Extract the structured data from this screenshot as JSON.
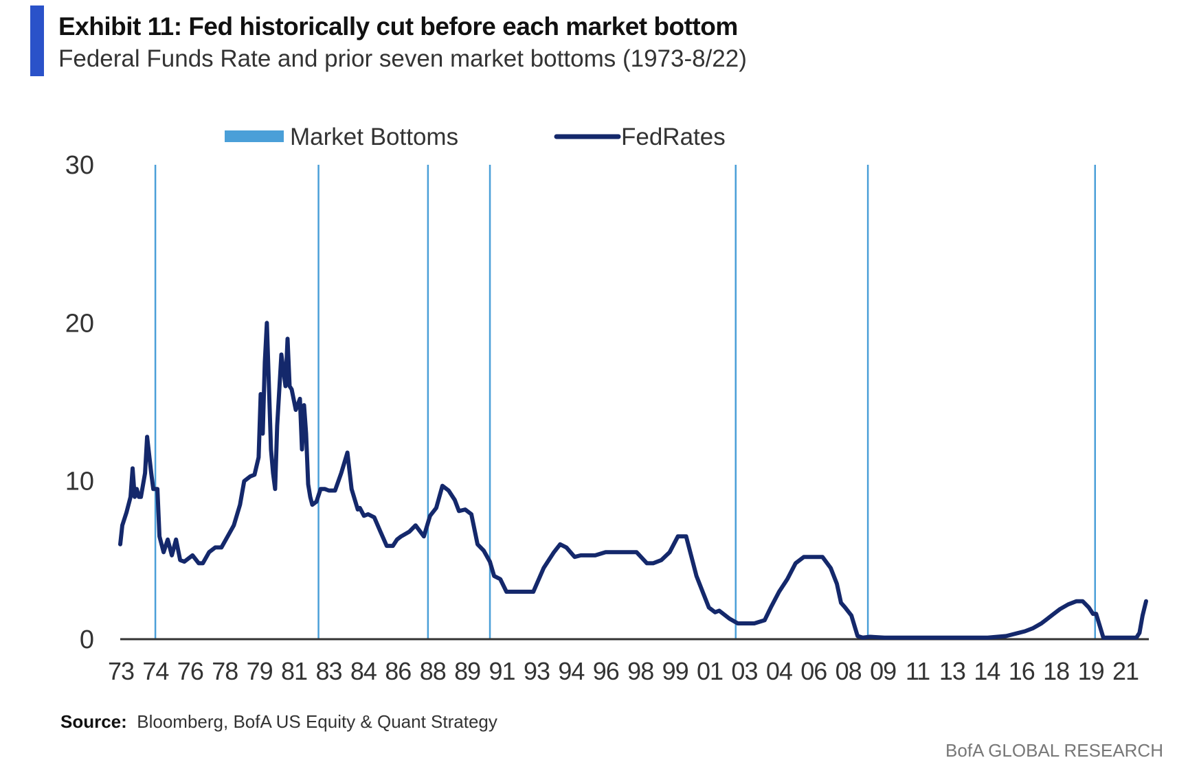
{
  "header": {
    "title": "Exhibit 11: Fed historically cut before each market bottom",
    "subtitle": "Federal Funds Rate and prior seven market bottoms (1973-8/22)"
  },
  "footer": {
    "source_label": "Source:",
    "source_text": "Bloomberg, BofA US Equity & Quant Strategy",
    "brand": "BofA GLOBAL RESEARCH"
  },
  "colors": {
    "accent": "#2a52c9",
    "market_bottoms": "#4a9fd8",
    "fed_rates": "#14286b",
    "axis": "#333333"
  },
  "chart_data": {
    "type": "line",
    "legend": [
      "Market Bottoms",
      "FedRates"
    ],
    "legend_position": "top",
    "ylim": [
      0,
      30
    ],
    "yticks": [
      0,
      10,
      20,
      30
    ],
    "xlim": [
      1973.0,
      2022.67
    ],
    "xtick_labels": [
      "73",
      "74",
      "76",
      "78",
      "79",
      "81",
      "83",
      "84",
      "86",
      "88",
      "89",
      "91",
      "93",
      "94",
      "96",
      "98",
      "99",
      "01",
      "03",
      "04",
      "06",
      "08",
      "09",
      "11",
      "13",
      "14",
      "16",
      "18",
      "19",
      "21"
    ],
    "grid": false,
    "market_bottoms": [
      1974.7,
      1982.6,
      1987.9,
      1990.9,
      2002.8,
      2009.2,
      2020.2
    ],
    "series": [
      {
        "name": "FedRates",
        "x": [
          1973.0,
          1973.1,
          1973.3,
          1973.5,
          1973.6,
          1973.7,
          1973.8,
          1973.9,
          1974.0,
          1974.2,
          1974.3,
          1974.5,
          1974.6,
          1974.8,
          1974.9,
          1975.1,
          1975.3,
          1975.5,
          1975.7,
          1975.9,
          1976.1,
          1976.5,
          1976.8,
          1977.0,
          1977.3,
          1977.6,
          1977.9,
          1978.2,
          1978.5,
          1978.8,
          1979.0,
          1979.3,
          1979.5,
          1979.7,
          1979.8,
          1979.9,
          1980.0,
          1980.1,
          1980.3,
          1980.4,
          1980.5,
          1980.6,
          1980.8,
          1981.0,
          1981.1,
          1981.2,
          1981.3,
          1981.5,
          1981.7,
          1981.8,
          1981.9,
          1982.0,
          1982.1,
          1982.2,
          1982.3,
          1982.5,
          1982.7,
          1982.9,
          1983.1,
          1983.4,
          1983.7,
          1984.0,
          1984.2,
          1984.5,
          1984.6,
          1984.8,
          1985.0,
          1985.3,
          1985.6,
          1985.9,
          1986.2,
          1986.4,
          1986.6,
          1987.0,
          1987.3,
          1987.7,
          1988.0,
          1988.3,
          1988.6,
          1988.9,
          1989.2,
          1989.4,
          1989.7,
          1990.0,
          1990.3,
          1990.6,
          1990.9,
          1991.1,
          1991.4,
          1991.7,
          1992.0,
          1992.3,
          1992.6,
          1993.0,
          1993.5,
          1994.0,
          1994.3,
          1994.6,
          1995.0,
          1995.3,
          1995.6,
          1996.0,
          1996.5,
          1997.0,
          1997.5,
          1998.0,
          1998.5,
          1998.8,
          1999.2,
          1999.6,
          2000.0,
          2000.4,
          2000.9,
          2001.2,
          2001.5,
          2001.8,
          2002.0,
          2002.5,
          2002.9,
          2003.3,
          2003.7,
          2004.2,
          2004.5,
          2004.9,
          2005.3,
          2005.7,
          2006.1,
          2006.5,
          2007.0,
          2007.4,
          2007.7,
          2007.9,
          2008.1,
          2008.4,
          2008.7,
          2008.95,
          2009.3,
          2010.0,
          2011.0,
          2012.0,
          2013.0,
          2014.0,
          2015.0,
          2015.9,
          2016.5,
          2016.8,
          2017.2,
          2017.6,
          2017.9,
          2018.2,
          2018.5,
          2018.9,
          2019.3,
          2019.6,
          2019.9,
          2020.1,
          2020.25,
          2020.6,
          2021.0,
          2021.5,
          2022.0,
          2022.2,
          2022.35,
          2022.5,
          2022.67
        ],
        "y": [
          6.0,
          7.2,
          8.0,
          9.0,
          10.8,
          9.0,
          9.5,
          9.0,
          9.0,
          10.5,
          12.8,
          10.5,
          9.5,
          9.5,
          6.5,
          5.5,
          6.3,
          5.3,
          6.3,
          5.0,
          4.9,
          5.3,
          4.8,
          4.8,
          5.5,
          5.8,
          5.8,
          6.5,
          7.2,
          8.5,
          10.0,
          10.3,
          10.4,
          11.5,
          15.5,
          13.0,
          17.5,
          20.0,
          12.0,
          10.5,
          9.5,
          13.5,
          18.0,
          16.0,
          19.0,
          16.0,
          15.8,
          14.5,
          15.2,
          12.0,
          14.8,
          13.0,
          9.8,
          9.0,
          8.5,
          8.7,
          9.5,
          9.5,
          9.4,
          9.4,
          10.5,
          11.8,
          9.5,
          8.2,
          8.3,
          7.8,
          7.9,
          7.7,
          6.8,
          5.9,
          5.9,
          6.3,
          6.5,
          6.8,
          7.2,
          6.5,
          7.8,
          8.3,
          9.7,
          9.4,
          8.8,
          8.1,
          8.2,
          7.9,
          6.0,
          5.6,
          4.9,
          4.0,
          3.8,
          3.0,
          3.0,
          3.0,
          3.0,
          3.0,
          4.5,
          5.5,
          6.0,
          5.8,
          5.2,
          5.3,
          5.3,
          5.3,
          5.5,
          5.5,
          5.5,
          5.5,
          4.8,
          4.8,
          5.0,
          5.5,
          6.5,
          6.5,
          4.0,
          3.0,
          2.0,
          1.7,
          1.8,
          1.3,
          1.0,
          1.0,
          1.0,
          1.2,
          2.0,
          3.0,
          3.8,
          4.8,
          5.2,
          5.2,
          5.2,
          4.5,
          3.5,
          2.3,
          2.0,
          1.5,
          0.2,
          0.1,
          0.15,
          0.1,
          0.1,
          0.1,
          0.1,
          0.1,
          0.1,
          0.2,
          0.4,
          0.5,
          0.7,
          1.0,
          1.3,
          1.6,
          1.9,
          2.2,
          2.4,
          2.4,
          2.0,
          1.6,
          1.6,
          0.1,
          0.1,
          0.1,
          0.1,
          0.1,
          0.4,
          1.5,
          2.4
        ]
      }
    ]
  }
}
